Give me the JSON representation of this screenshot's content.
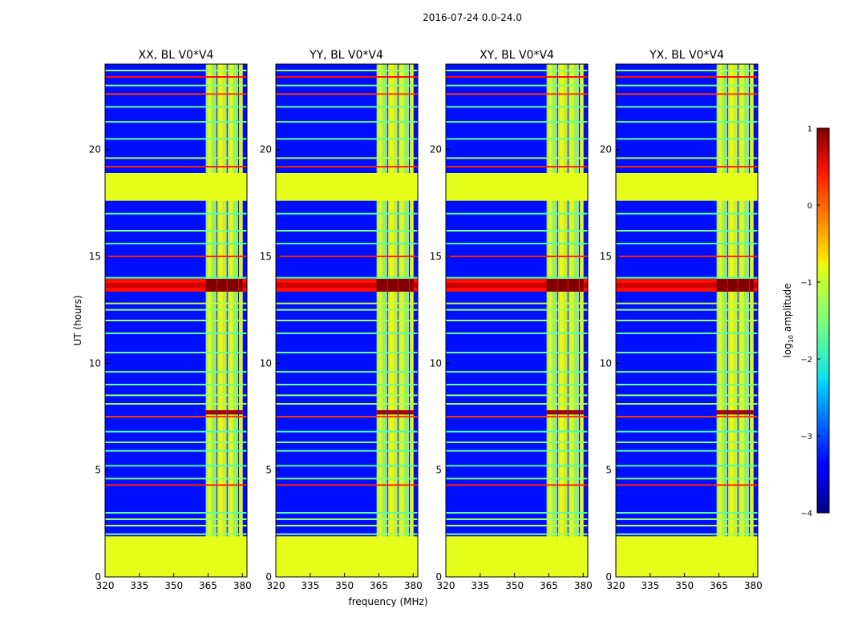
{
  "figure": {
    "suptitle": "2016-07-24 0.0-24.0"
  },
  "chart_data": {
    "type": "heatmap",
    "panels": [
      {
        "title": "XX, BL V0*V4",
        "pol": "XX"
      },
      {
        "title": "YY, BL V0*V4",
        "pol": "YY"
      },
      {
        "title": "XY, BL V0*V4",
        "pol": "XY"
      },
      {
        "title": "YX, BL V0*V4",
        "pol": "YX"
      }
    ],
    "xlabel": "frequency (MHz)",
    "ylabel": "UT (hours)",
    "xlim": [
      320,
      382
    ],
    "ylim": [
      0,
      24
    ],
    "xticks": [
      320,
      335,
      350,
      365,
      380
    ],
    "xtick_labels": [
      "320",
      "335",
      "350",
      "365",
      "380"
    ],
    "yticks": [
      0,
      5,
      10,
      15,
      20
    ],
    "ytick_labels": [
      "0",
      "5",
      "10",
      "15",
      "20"
    ],
    "colorbar": {
      "label_base": "log",
      "label_sub": "10",
      "label_rest": " amplitude",
      "range": [
        -4,
        1
      ],
      "ticks": [
        1,
        0,
        -1,
        -2,
        -3,
        -4
      ],
      "tick_labels": [
        "1",
        "0",
        "−1",
        "−2",
        "−3",
        "−4"
      ],
      "colormap": "jet"
    },
    "background_level": -3.3,
    "rfi_channels": [
      [
        364.0,
        369.0
      ],
      [
        369.0,
        373.5
      ],
      [
        373.5,
        378.5
      ],
      [
        378.5,
        380.5
      ]
    ],
    "flagged_time_ranges": [
      [
        0.0,
        1.9
      ],
      [
        17.6,
        18.9
      ]
    ],
    "horizontal_lines": [
      {
        "t": 2.0,
        "v": -1.4
      },
      {
        "t": 2.4,
        "v": -1.2
      },
      {
        "t": 2.7,
        "v": -1.4
      },
      {
        "t": 3.0,
        "v": -1.7
      },
      {
        "t": 4.3,
        "v": 0.2
      },
      {
        "t": 4.6,
        "v": -1.5
      },
      {
        "t": 5.2,
        "v": -1.8
      },
      {
        "t": 5.9,
        "v": -1.7
      },
      {
        "t": 6.3,
        "v": -1.5
      },
      {
        "t": 6.8,
        "v": -1.8
      },
      {
        "t": 7.5,
        "v": 0.1
      },
      {
        "t": 8.1,
        "v": -1.3
      },
      {
        "t": 8.5,
        "v": -1.4
      },
      {
        "t": 9.0,
        "v": -1.6
      },
      {
        "t": 9.6,
        "v": -1.7
      },
      {
        "t": 10.5,
        "v": -1.6
      },
      {
        "t": 11.4,
        "v": -1.7
      },
      {
        "t": 12.0,
        "v": -1.3
      },
      {
        "t": 12.5,
        "v": -1.4
      },
      {
        "t": 12.8,
        "v": -1.2
      },
      {
        "t": 14.0,
        "v": -1.7
      },
      {
        "t": 15.0,
        "v": 0.2
      },
      {
        "t": 15.6,
        "v": -1.8
      },
      {
        "t": 16.2,
        "v": -1.6
      },
      {
        "t": 17.0,
        "v": -1.7
      },
      {
        "t": 19.2,
        "v": 0.2
      },
      {
        "t": 19.6,
        "v": -1.3
      },
      {
        "t": 20.5,
        "v": -1.6
      },
      {
        "t": 21.3,
        "v": -1.7
      },
      {
        "t": 22.0,
        "v": -1.6
      },
      {
        "t": 22.6,
        "v": 0.1
      },
      {
        "t": 23.0,
        "v": -1.5
      },
      {
        "t": 23.4,
        "v": 0.3
      },
      {
        "t": 23.7,
        "v": -1.4
      }
    ],
    "bright_events": [
      {
        "t0": 13.35,
        "t1": 13.95,
        "v_low_freq": 0.3,
        "v_high_freq": 1.0
      },
      {
        "t0": 7.6,
        "t1": 7.8,
        "v_low_freq": -3.3,
        "v_high_freq": 0.8
      }
    ]
  }
}
